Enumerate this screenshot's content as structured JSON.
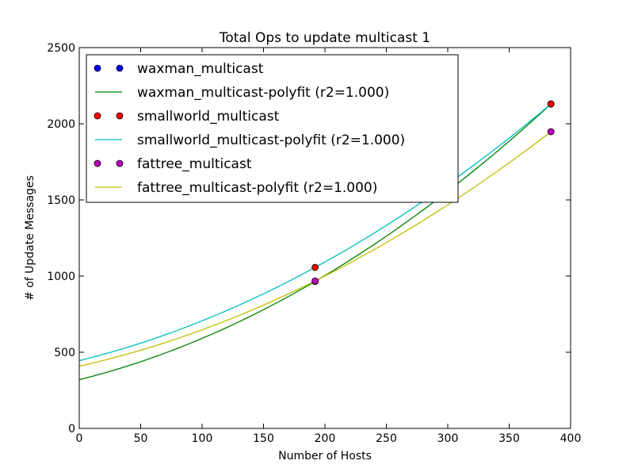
{
  "chart_data": {
    "type": "line",
    "title": "Total Ops to update multicast 1",
    "xlabel": "Number of Hosts",
    "ylabel": "# of Update Messages",
    "xlim": [
      0,
      400
    ],
    "ylim": [
      0,
      2500
    ],
    "xticks": [
      "0",
      "50",
      "100",
      "150",
      "200",
      "250",
      "300",
      "350",
      "400"
    ],
    "yticks": [
      "0",
      "500",
      "1000",
      "1500",
      "2000",
      "2500"
    ],
    "grid": false,
    "legend_position": "top-left",
    "series": [
      {
        "name": "waxman_multicast",
        "kind": "points",
        "color": "#0000ff",
        "x": [
          192,
          384
        ],
        "y": [
          965,
          2130
        ]
      },
      {
        "name": "waxman_multicast-polyfit (r2=1.000)",
        "kind": "curve",
        "color": "#008000",
        "x": [
          0,
          192,
          384
        ],
        "y": [
          320,
          965,
          2130
        ]
      },
      {
        "name": "smallworld_multicast",
        "kind": "points",
        "color": "#ff0000",
        "x": [
          192,
          384
        ],
        "y": [
          1057,
          2130
        ]
      },
      {
        "name": "smallworld_multicast-polyfit (r2=1.000)",
        "kind": "curve",
        "color": "#00bfbf",
        "x": [
          0,
          192,
          384
        ],
        "y": [
          445,
          1057,
          2130
        ]
      },
      {
        "name": "fattree_multicast",
        "kind": "points",
        "color": "#bf00bf",
        "x": [
          192,
          384
        ],
        "y": [
          968,
          1948
        ]
      },
      {
        "name": "fattree_multicast-polyfit (r2=1.000)",
        "kind": "curve",
        "color": "#bfbf00",
        "x": [
          0,
          192,
          384
        ],
        "y": [
          408,
          968,
          1948
        ]
      }
    ]
  }
}
